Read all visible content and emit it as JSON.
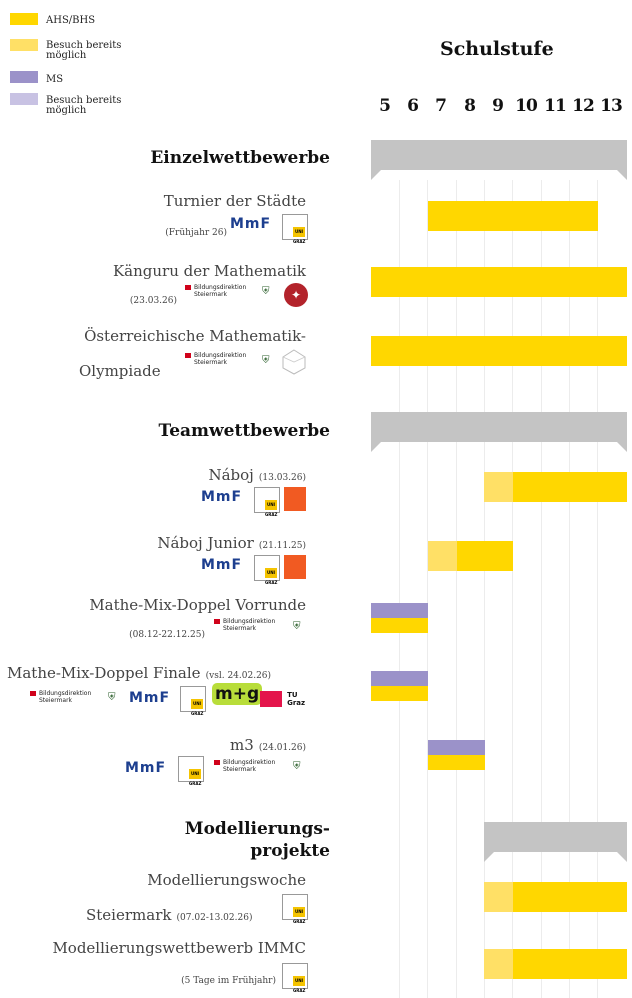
{
  "legend": [
    {
      "label": "AHS/BHS",
      "color": "#ffd700"
    },
    {
      "label": "Besuch bereits möglich",
      "color": "#ffe066"
    },
    {
      "label": "MS",
      "color": "#9b92c9"
    },
    {
      "label": "Besuch bereits möglich",
      "color": "#c8c2e3"
    }
  ],
  "header": {
    "title": "Schulstufe"
  },
  "grades": [
    "5",
    "6",
    "7",
    "8",
    "9",
    "10",
    "11",
    "12",
    "13"
  ],
  "sections": [
    {
      "title": "Einzelwettbewerbe"
    },
    {
      "title": "Teamwettbewerbe"
    },
    {
      "title": "Modellierungs- projekte"
    }
  ],
  "items": [
    {
      "title": "Turnier der Städte",
      "date": "(Frühjahr 26)"
    },
    {
      "title": "Känguru der Mathematik",
      "date": "(23.03.26)"
    },
    {
      "title_line1": "Österreichische Mathematik-",
      "title_line2": "Olympiade"
    },
    {
      "title": "Náboj",
      "date": "(13.03.26)"
    },
    {
      "title": "Náboj Junior",
      "date": "(21.11.25)"
    },
    {
      "title": "Mathe-Mix-Doppel Vorrunde",
      "date": "(08.12-22.12.25)"
    },
    {
      "title": "Mathe-Mix-Doppel Finale",
      "date": "(vsl. 24.02.26)"
    },
    {
      "title": "m3",
      "date": "(24.01.26)"
    },
    {
      "title_line1": "Modellierungswoche",
      "title_line2": "Steiermark",
      "date": "(07.02-13.02.26)"
    },
    {
      "title": "Modellierungswettbewerb IMMC",
      "date": "(5 Tage im Frühjahr)"
    }
  ],
  "logos": {
    "mmf": "MmF",
    "uni": "UNI GRAZ",
    "bd_line1": "Bildungsdirektion",
    "bd_line2": "Steiermark",
    "mg": "m+g",
    "tu": "TU Graz"
  },
  "colors": {
    "ahs": "#ffd700",
    "ahs_early": "#ffe066",
    "ms": "#9b92c9",
    "ms_early": "#c8c2e3",
    "section": "#c4c4c4"
  }
}
